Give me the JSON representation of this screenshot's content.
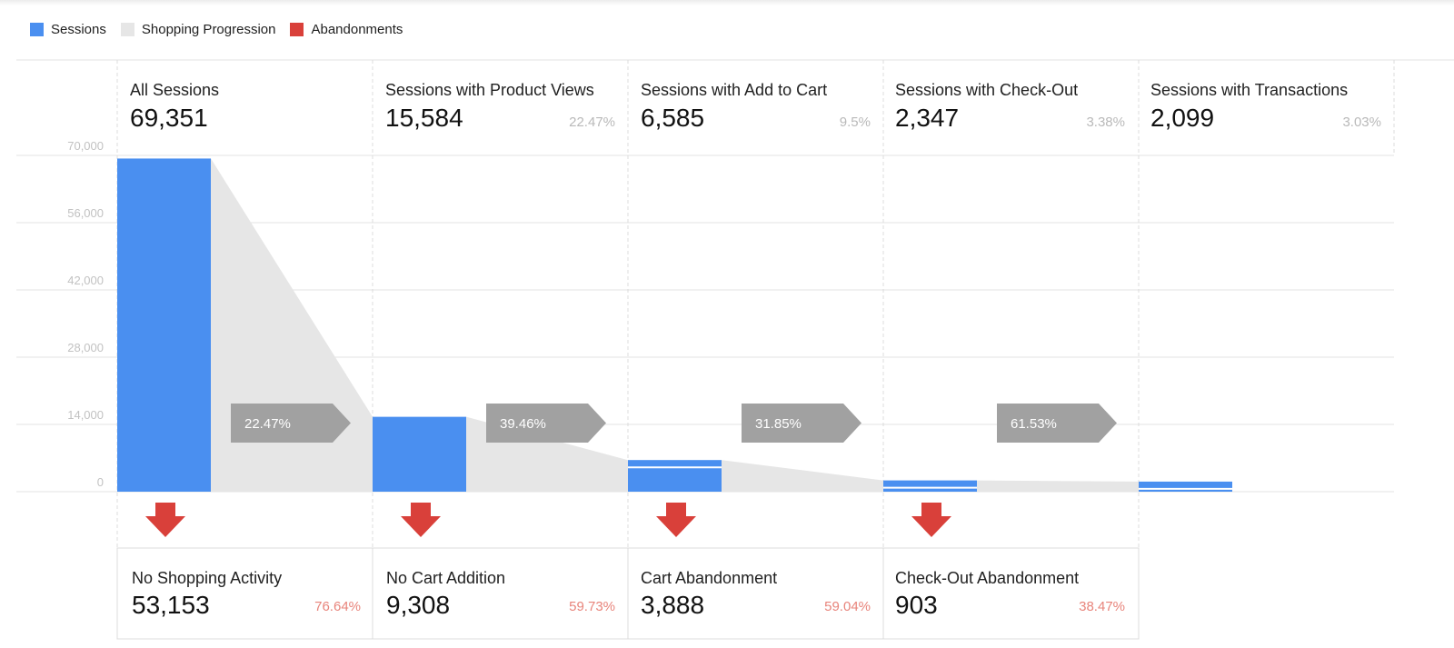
{
  "legend": [
    {
      "label": "Sessions",
      "color": "#4a8ff0"
    },
    {
      "label": "Shopping Progression",
      "color": "#e6e6e6"
    },
    {
      "label": "Abandonments",
      "color": "#d9403a"
    }
  ],
  "stages": [
    {
      "label": "All Sessions",
      "value": "69,351",
      "pct": ""
    },
    {
      "label": "Sessions with Product Views",
      "value": "15,584",
      "pct": "22.47%"
    },
    {
      "label": "Sessions with Add to Cart",
      "value": "6,585",
      "pct": "9.5%"
    },
    {
      "label": "Sessions with Check-Out",
      "value": "2,347",
      "pct": "3.38%"
    },
    {
      "label": "Sessions with Transactions",
      "value": "2,099",
      "pct": "3.03%"
    }
  ],
  "abandonments": [
    {
      "label": "No Shopping Activity",
      "value": "53,153",
      "pct": "76.64%"
    },
    {
      "label": "No Cart Addition",
      "value": "9,308",
      "pct": "59.73%"
    },
    {
      "label": "Cart Abandonment",
      "value": "3,888",
      "pct": "59.04%"
    },
    {
      "label": "Check-Out Abandonment",
      "value": "903",
      "pct": "38.47%"
    }
  ],
  "chart_data": {
    "type": "bar",
    "categories": [
      "All Sessions",
      "Sessions with Product Views",
      "Sessions with Add to Cart",
      "Sessions with Check-Out",
      "Sessions with Transactions"
    ],
    "values": [
      69351,
      15584,
      6585,
      2347,
      2099
    ],
    "progression_rates": [
      "22.47%",
      "39.46%",
      "31.85%",
      "61.53%"
    ],
    "ylim": [
      0,
      70000
    ],
    "yticks": [
      0,
      14000,
      28000,
      42000,
      56000,
      70000
    ],
    "ytick_labels": [
      "0",
      "14,000",
      "28,000",
      "42,000",
      "56,000",
      "70,000"
    ],
    "grid": true,
    "colors": {
      "bar": "#4a8ff0",
      "progression": "#e6e6e6",
      "arrow": "#a1a1a1",
      "abandon": "#d9403a"
    }
  }
}
